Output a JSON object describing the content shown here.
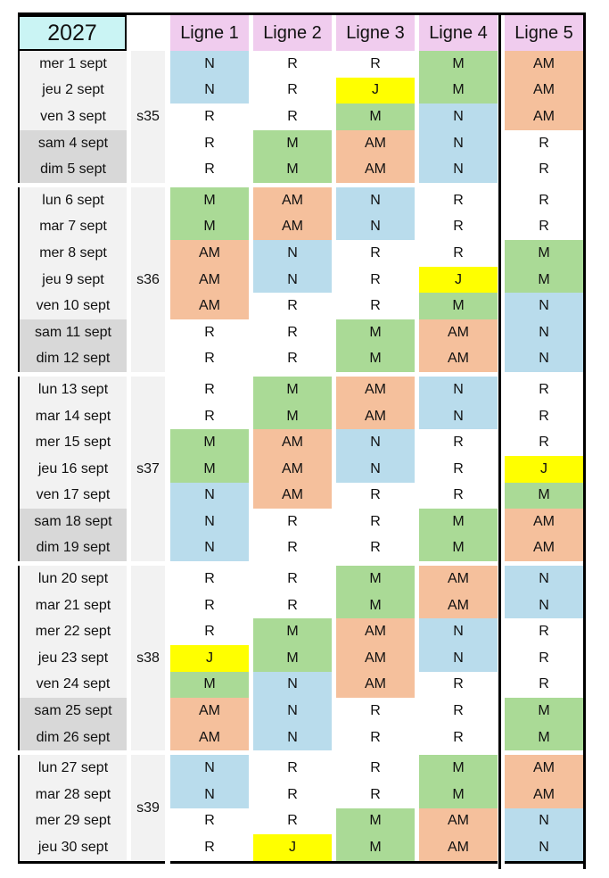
{
  "title": {
    "year": "2027"
  },
  "columns": [
    "Ligne 1",
    "Ligne 2",
    "Ligne 3",
    "Ligne 4",
    "Ligne 5"
  ],
  "shift_colors": {
    "N": "#B9DCEC",
    "M": "#AADA96",
    "AM": "#F5C09C",
    "J": "#FFFF00",
    "R": "#FFFFFF"
  },
  "palette": {
    "year_cell": "#CAF4F4",
    "column_header": "#F0CCEE",
    "weekday_date": "#F2F2F2",
    "weekend_date": "#D8D8D8",
    "week_column": "#F2F2F2",
    "border": "#000000"
  },
  "weeks": [
    {
      "label": "s35",
      "days": [
        {
          "date": "mer 1 sept",
          "weekend": false,
          "shifts": [
            "N",
            "R",
            "R",
            "M",
            "AM"
          ]
        },
        {
          "date": "jeu 2 sept",
          "weekend": false,
          "shifts": [
            "N",
            "R",
            "J",
            "M",
            "AM"
          ]
        },
        {
          "date": "ven 3 sept",
          "weekend": false,
          "shifts": [
            "R",
            "R",
            "M",
            "N",
            "AM"
          ]
        },
        {
          "date": "sam 4 sept",
          "weekend": true,
          "shifts": [
            "R",
            "M",
            "AM",
            "N",
            "R"
          ]
        },
        {
          "date": "dim 5 sept",
          "weekend": true,
          "shifts": [
            "R",
            "M",
            "AM",
            "N",
            "R"
          ]
        }
      ]
    },
    {
      "label": "s36",
      "days": [
        {
          "date": "lun 6 sept",
          "weekend": false,
          "shifts": [
            "M",
            "AM",
            "N",
            "R",
            "R"
          ]
        },
        {
          "date": "mar 7 sept",
          "weekend": false,
          "shifts": [
            "M",
            "AM",
            "N",
            "R",
            "R"
          ]
        },
        {
          "date": "mer 8 sept",
          "weekend": false,
          "shifts": [
            "AM",
            "N",
            "R",
            "R",
            "M"
          ]
        },
        {
          "date": "jeu 9 sept",
          "weekend": false,
          "shifts": [
            "AM",
            "N",
            "R",
            "J",
            "M"
          ]
        },
        {
          "date": "ven 10 sept",
          "weekend": false,
          "shifts": [
            "AM",
            "R",
            "R",
            "M",
            "N"
          ]
        },
        {
          "date": "sam 11 sept",
          "weekend": true,
          "shifts": [
            "R",
            "R",
            "M",
            "AM",
            "N"
          ]
        },
        {
          "date": "dim 12 sept",
          "weekend": true,
          "shifts": [
            "R",
            "R",
            "M",
            "AM",
            "N"
          ]
        }
      ]
    },
    {
      "label": "s37",
      "days": [
        {
          "date": "lun 13 sept",
          "weekend": false,
          "shifts": [
            "R",
            "M",
            "AM",
            "N",
            "R"
          ]
        },
        {
          "date": "mar 14 sept",
          "weekend": false,
          "shifts": [
            "R",
            "M",
            "AM",
            "N",
            "R"
          ]
        },
        {
          "date": "mer 15 sept",
          "weekend": false,
          "shifts": [
            "M",
            "AM",
            "N",
            "R",
            "R"
          ]
        },
        {
          "date": "jeu 16 sept",
          "weekend": false,
          "shifts": [
            "M",
            "AM",
            "N",
            "R",
            "J"
          ]
        },
        {
          "date": "ven 17 sept",
          "weekend": false,
          "shifts": [
            "N",
            "AM",
            "R",
            "R",
            "M"
          ]
        },
        {
          "date": "sam 18 sept",
          "weekend": true,
          "shifts": [
            "N",
            "R",
            "R",
            "M",
            "AM"
          ]
        },
        {
          "date": "dim 19 sept",
          "weekend": true,
          "shifts": [
            "N",
            "R",
            "R",
            "M",
            "AM"
          ]
        }
      ]
    },
    {
      "label": "s38",
      "days": [
        {
          "date": "lun 20 sept",
          "weekend": false,
          "shifts": [
            "R",
            "R",
            "M",
            "AM",
            "N"
          ]
        },
        {
          "date": "mar 21 sept",
          "weekend": false,
          "shifts": [
            "R",
            "R",
            "M",
            "AM",
            "N"
          ]
        },
        {
          "date": "mer 22 sept",
          "weekend": false,
          "shifts": [
            "R",
            "M",
            "AM",
            "N",
            "R"
          ]
        },
        {
          "date": "jeu 23 sept",
          "weekend": false,
          "shifts": [
            "J",
            "M",
            "AM",
            "N",
            "R"
          ]
        },
        {
          "date": "ven 24 sept",
          "weekend": false,
          "shifts": [
            "M",
            "N",
            "AM",
            "R",
            "R"
          ]
        },
        {
          "date": "sam 25 sept",
          "weekend": true,
          "shifts": [
            "AM",
            "N",
            "R",
            "R",
            "M"
          ]
        },
        {
          "date": "dim 26 sept",
          "weekend": true,
          "shifts": [
            "AM",
            "N",
            "R",
            "R",
            "M"
          ]
        }
      ]
    },
    {
      "label": "s39",
      "days": [
        {
          "date": "lun 27 sept",
          "weekend": false,
          "shifts": [
            "N",
            "R",
            "R",
            "M",
            "AM"
          ]
        },
        {
          "date": "mar 28 sept",
          "weekend": false,
          "shifts": [
            "N",
            "R",
            "R",
            "M",
            "AM"
          ]
        },
        {
          "date": "mer 29 sept",
          "weekend": false,
          "shifts": [
            "R",
            "R",
            "M",
            "AM",
            "N"
          ]
        },
        {
          "date": "jeu 30 sept",
          "weekend": false,
          "shifts": [
            "R",
            "J",
            "M",
            "AM",
            "N"
          ]
        }
      ]
    }
  ]
}
